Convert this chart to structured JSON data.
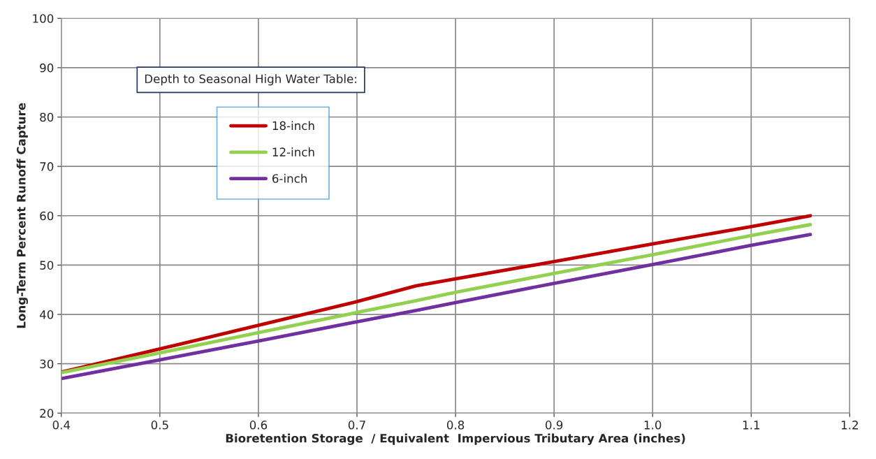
{
  "chart_data": {
    "type": "line",
    "xlabel": "Bioretention Storage  / Equivalent  Impervious Tributary Area (inches)",
    "ylabel": "Long-Term Percent Runoff Capture",
    "legend_title": "Depth to Seasonal High Water Table:",
    "x": [
      0.4,
      0.5,
      0.6,
      0.7,
      0.76,
      0.8,
      0.9,
      1.0,
      1.1,
      1.16
    ],
    "series": [
      {
        "name": "18-inch",
        "color": "#c00000",
        "values": [
          28.3,
          33.0,
          37.8,
          42.6,
          45.8,
          47.2,
          50.7,
          54.3,
          57.8,
          60.0
        ]
      },
      {
        "name": "12-inch",
        "color": "#92d050",
        "values": [
          28.2,
          32.2,
          36.3,
          40.4,
          42.8,
          44.5,
          48.3,
          52.1,
          56.0,
          58.2
        ]
      },
      {
        "name": "6-inch",
        "color": "#7030a0",
        "values": [
          27.0,
          30.8,
          34.6,
          38.5,
          40.8,
          42.4,
          46.3,
          50.1,
          54.0,
          56.2
        ]
      }
    ],
    "xlim": [
      0.4,
      1.2
    ],
    "ylim": [
      20,
      100
    ],
    "xticks": [
      {
        "value": 0.4,
        "label": "0.4"
      },
      {
        "value": 0.5,
        "label": "0.5"
      },
      {
        "value": 0.6,
        "label": "0.6"
      },
      {
        "value": 0.7,
        "label": "0.7"
      },
      {
        "value": 0.8,
        "label": "0.8"
      },
      {
        "value": 0.9,
        "label": "0.9"
      },
      {
        "value": 1.0,
        "label": "1.0"
      },
      {
        "value": 1.1,
        "label": "1.1"
      },
      {
        "value": 1.2,
        "label": "1.2"
      }
    ],
    "yticks": [
      20,
      30,
      40,
      50,
      60,
      70,
      80,
      90,
      100
    ],
    "grid": true,
    "legend": "top left",
    "marker": "none",
    "line_style": "solid"
  }
}
